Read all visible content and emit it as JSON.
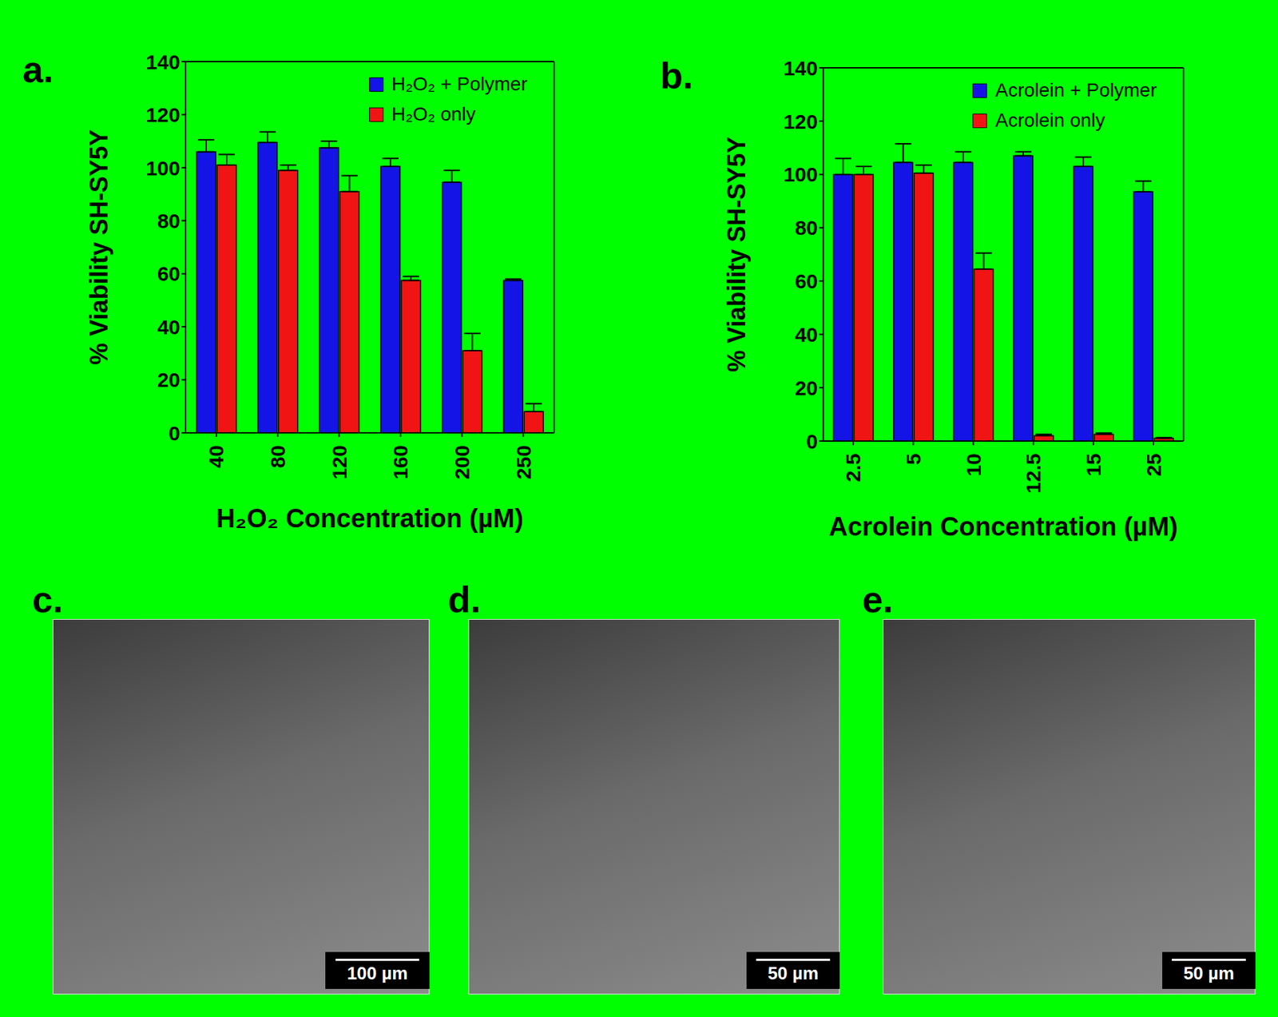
{
  "chart_data": [
    {
      "type": "bar",
      "annotation": "a.",
      "x_label": "H₂O₂ Concentration (µM)",
      "y_label": "% Viability SH-SY5Y",
      "categories": [
        "40",
        "80",
        "120",
        "160",
        "200",
        "250"
      ],
      "series": [
        {
          "name": "H₂O₂ + Polymer",
          "color": "#1414e6",
          "values": [
            106,
            109.5,
            107.5,
            100.5,
            94.5,
            57.5
          ],
          "errors": [
            4.5,
            4,
            2.5,
            3,
            4.5,
            0.5
          ]
        },
        {
          "name": "H₂O₂ only",
          "color": "#f01414",
          "values": [
            101,
            99,
            91,
            57.5,
            31,
            8
          ],
          "errors": [
            4,
            2,
            6,
            1.5,
            6.5,
            3
          ]
        }
      ],
      "ylim": [
        0,
        140
      ],
      "yticks": [
        0,
        20,
        40,
        60,
        80,
        100,
        120,
        140
      ],
      "grid": false,
      "legend": "upper right"
    },
    {
      "type": "bar",
      "annotation": "b.",
      "x_label": "Acrolein Concentration (µM)",
      "y_label": "% Viability SH-SY5Y",
      "categories": [
        "2.5",
        "5",
        "10",
        "12.5",
        "15",
        "25"
      ],
      "series": [
        {
          "name": "Acrolein + Polymer",
          "color": "#1414e6",
          "values": [
            100,
            104.5,
            104.5,
            107,
            103,
            93.5
          ],
          "errors": [
            6,
            7,
            4,
            1.5,
            3.5,
            4
          ]
        },
        {
          "name": "Acrolein only",
          "color": "#f01414",
          "values": [
            100,
            100.5,
            64.5,
            2,
            2.5,
            1
          ],
          "errors": [
            3,
            3,
            6,
            0.5,
            0.5,
            0.3
          ]
        }
      ],
      "ylim": [
        0,
        140
      ],
      "yticks": [
        0,
        20,
        40,
        60,
        80,
        100,
        120,
        140
      ],
      "grid": false,
      "legend": "upper right"
    }
  ],
  "images": [
    {
      "label": "c.",
      "scale_bar": "100 µm"
    },
    {
      "label": "d.",
      "scale_bar": "50 µm"
    },
    {
      "label": "e.",
      "scale_bar": "50 µm"
    }
  ]
}
